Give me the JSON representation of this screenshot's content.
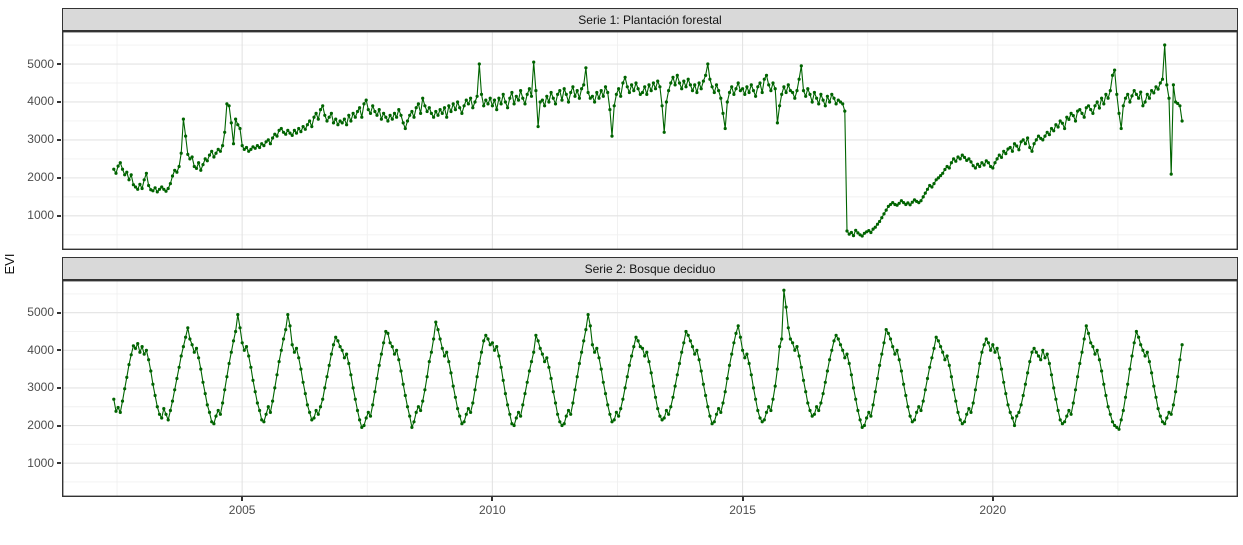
{
  "chart_data": {
    "type": "line",
    "title": "",
    "xlabel": "",
    "ylabel": "EVI",
    "legend": "none",
    "grid": true,
    "point_color": "#006400",
    "x_axis": {
      "ticks": [
        2005,
        2010,
        2015,
        2020
      ],
      "minor_ticks": [
        2002.5,
        2007.5,
        2012.5,
        2017.5,
        2022.5
      ],
      "domain": [
        2001.4,
        2024.9
      ]
    },
    "y_axis": {
      "ticks": [
        1000,
        2000,
        3000,
        4000,
        5000
      ],
      "minor_ticks": [
        500,
        1500,
        2500,
        3500,
        4500,
        5500
      ],
      "domain": [
        100,
        5870
      ]
    },
    "x_start": 2002.4348,
    "x_step": 0.043478,
    "facets": [
      {
        "title": "Serie 1: Plantación forestal",
        "values": [
          2230,
          2120,
          2310,
          2400,
          2230,
          2080,
          2150,
          1950,
          2080,
          1820,
          1760,
          1700,
          1830,
          1720,
          1950,
          2120,
          1800,
          1690,
          1660,
          1740,
          1630,
          1700,
          1760,
          1700,
          1650,
          1720,
          1850,
          2050,
          2200,
          2150,
          2300,
          2650,
          3550,
          3100,
          2620,
          2500,
          2550,
          2300,
          2250,
          2400,
          2200,
          2350,
          2500,
          2450,
          2600,
          2700,
          2550,
          2650,
          2750,
          2700,
          2850,
          3200,
          3950,
          3900,
          3450,
          2900,
          3550,
          3400,
          3300,
          2850,
          2750,
          2800,
          2700,
          2750,
          2820,
          2780,
          2850,
          2800,
          2900,
          2850,
          2950,
          3000,
          2900,
          3050,
          3150,
          3100,
          3250,
          3300,
          3200,
          3150,
          3250,
          3180,
          3120,
          3250,
          3180,
          3300,
          3220,
          3350,
          3280,
          3400,
          3500,
          3350,
          3600,
          3700,
          3550,
          3800,
          3900,
          3650,
          3500,
          3600,
          3700,
          3450,
          3550,
          3400,
          3500,
          3450,
          3550,
          3400,
          3650,
          3500,
          3700,
          3600,
          3750,
          3850,
          3600,
          3950,
          4050,
          3800,
          3700,
          3900,
          3750,
          3650,
          3800,
          3550,
          3700,
          3600,
          3500,
          3650,
          3550,
          3700,
          3600,
          3800,
          3650,
          3450,
          3300,
          3500,
          3650,
          3750,
          3600,
          3850,
          3950,
          3700,
          4100,
          3900,
          3750,
          3850,
          3700,
          3600,
          3750,
          3650,
          3800,
          3700,
          3850,
          3600,
          3900,
          3750,
          3950,
          3800,
          4000,
          3850,
          3700,
          3900,
          4050,
          3950,
          4100,
          3850,
          4000,
          4150,
          5000,
          4200,
          3900,
          4050,
          3950,
          4100,
          3900,
          4050,
          3800,
          4100,
          3950,
          4200,
          4000,
          3850,
          4100,
          4250,
          3950,
          4150,
          4050,
          4300,
          4100,
          3950,
          4200,
          4350,
          4150,
          5050,
          4300,
          3350,
          4000,
          4050,
          3900,
          4150,
          4000,
          4250,
          4100,
          3950,
          4200,
          4300,
          4050,
          4350,
          4200,
          4000,
          4250,
          4400,
          4150,
          4300,
          4100,
          4350,
          4450,
          4900,
          4250,
          4100,
          4150,
          4000,
          4250,
          4100,
          4300,
          4150,
          4400,
          4250,
          3800,
          3100,
          3900,
          4200,
          4350,
          4150,
          4500,
          4650,
          4400,
          4250,
          4450,
          4300,
          4500,
          4350,
          4200,
          4250,
          4400,
          4200,
          4450,
          4300,
          4500,
          4350,
          4550,
          4400,
          3900,
          3200,
          4000,
          4300,
          4500,
          4650,
          4450,
          4700,
          4500,
          4350,
          4550,
          4400,
          4600,
          4450,
          4300,
          4450,
          4250,
          4500,
          4350,
          4550,
          4700,
          5000,
          4600,
          4400,
          4250,
          4450,
          4300,
          4100,
          3700,
          3300,
          4000,
          4250,
          4400,
          4200,
          4350,
          4500,
          4300,
          4350,
          4200,
          4400,
          4250,
          4450,
          4300,
          4150,
          4400,
          4500,
          4250,
          4600,
          4700,
          4450,
          4300,
          4500,
          4350,
          3450,
          3900,
          4200,
          4400,
          4250,
          4450,
          4300,
          4250,
          4100,
          4300,
          4600,
          4950,
          4300,
          4150,
          4350,
          4200,
          4000,
          4250,
          4100,
          3950,
          4200,
          4050,
          3900,
          4150,
          4000,
          4200,
          4100,
          3950,
          4050,
          4000,
          3950,
          3760,
          600,
          520,
          560,
          480,
          620,
          550,
          500,
          470,
          540,
          580,
          610,
          560,
          650,
          700,
          780,
          850,
          950,
          1050,
          1150,
          1250,
          1300,
          1350,
          1300,
          1280,
          1330,
          1400,
          1350,
          1300,
          1340,
          1290,
          1360,
          1420,
          1380,
          1350,
          1400,
          1500,
          1600,
          1700,
          1800,
          1760,
          1850,
          1950,
          2000,
          2060,
          2120,
          2220,
          2300,
          2260,
          2400,
          2500,
          2440,
          2550,
          2500,
          2600,
          2540,
          2460,
          2500,
          2420,
          2320,
          2260,
          2360,
          2300,
          2400,
          2340,
          2450,
          2400,
          2300,
          2260,
          2400,
          2500,
          2600,
          2540,
          2700,
          2640,
          2760,
          2800,
          2700,
          2900,
          2840,
          2740,
          2950,
          3000,
          2900,
          3050,
          2800,
          2700,
          2900,
          3000,
          3100,
          3040,
          3000,
          3100,
          3200,
          3140,
          3300,
          3240,
          3400,
          3340,
          3500,
          3440,
          3300,
          3600,
          3540,
          3700,
          3640,
          3500,
          3760,
          3800,
          3700,
          3600,
          3850,
          3900,
          3800,
          3700,
          3900,
          4000,
          3840,
          4100,
          3950,
          4200,
          4100,
          4300,
          4700,
          4840,
          4200,
          3700,
          3300,
          3900,
          4100,
          4200,
          4000,
          4160,
          4300,
          4200,
          4100,
          4260,
          3900,
          4000,
          4200,
          4100,
          4300,
          4240,
          4400,
          4340,
          4500,
          4600,
          5500,
          4450,
          4100,
          2100,
          4450,
          4000,
          3960,
          3900,
          3500
        ]
      },
      {
        "title": "Serie 2: Bosque deciduo",
        "values": [
          2700,
          2380,
          2480,
          2350,
          2650,
          2980,
          3280,
          3620,
          3880,
          4120,
          4050,
          4180,
          3950,
          4100,
          3900,
          4000,
          3750,
          3450,
          3100,
          2800,
          2500,
          2300,
          2200,
          2450,
          2300,
          2150,
          2400,
          2650,
          2950,
          3250,
          3550,
          3850,
          4100,
          4350,
          4600,
          4300,
          4150,
          3950,
          4050,
          3800,
          3500,
          3150,
          2850,
          2550,
          2350,
          2100,
          2050,
          2250,
          2400,
          2300,
          2600,
          2950,
          3300,
          3650,
          3950,
          4250,
          4500,
          4950,
          4600,
          4200,
          4000,
          4100,
          3850,
          3550,
          3200,
          2900,
          2600,
          2400,
          2150,
          2100,
          2300,
          2500,
          2350,
          2650,
          3000,
          3350,
          3700,
          4000,
          4300,
          4550,
          4950,
          4650,
          4150,
          3950,
          4050,
          3800,
          3500,
          3150,
          2850,
          2550,
          2350,
          2150,
          2200,
          2400,
          2300,
          2500,
          2700,
          3000,
          3300,
          3600,
          3900,
          4150,
          4350,
          4250,
          4100,
          4000,
          3800,
          3900,
          3650,
          3350,
          3000,
          2700,
          2400,
          2150,
          1950,
          2000,
          2200,
          2350,
          2250,
          2550,
          2900,
          3250,
          3600,
          3900,
          4200,
          4500,
          4450,
          4200,
          4100,
          3900,
          4000,
          3750,
          3450,
          3100,
          2800,
          2500,
          2250,
          1950,
          2100,
          2350,
          2500,
          2400,
          2650,
          2950,
          3300,
          3700,
          3950,
          4300,
          4750,
          4550,
          4300,
          4050,
          3850,
          3950,
          3700,
          3400,
          3050,
          2750,
          2450,
          2250,
          2050,
          2100,
          2300,
          2450,
          2350,
          2600,
          2950,
          3300,
          3650,
          3950,
          4250,
          4400,
          4300,
          4150,
          4200,
          4000,
          4100,
          3850,
          3550,
          3200,
          2850,
          2550,
          2300,
          2050,
          2000,
          2200,
          2350,
          2250,
          2550,
          2850,
          3150,
          3450,
          3700,
          3950,
          4400,
          4250,
          4050,
          3900,
          3700,
          3800,
          3550,
          3250,
          2900,
          2600,
          2300,
          2100,
          2000,
          2050,
          2250,
          2400,
          2300,
          2600,
          2950,
          3300,
          3650,
          3950,
          4250,
          4550,
          4950,
          4650,
          4150,
          3950,
          4050,
          3800,
          3500,
          3150,
          2850,
          2550,
          2300,
          2100,
          2150,
          2350,
          2250,
          2450,
          2700,
          3000,
          3300,
          3600,
          3850,
          4100,
          4350,
          4250,
          4100,
          4050,
          3850,
          3950,
          3700,
          3400,
          3050,
          2750,
          2450,
          2250,
          2150,
          2200,
          2400,
          2300,
          2500,
          2750,
          3050,
          3350,
          3650,
          3950,
          4200,
          4500,
          4400,
          4250,
          4100,
          3900,
          4000,
          3750,
          3450,
          3100,
          2800,
          2500,
          2250,
          2050,
          2100,
          2300,
          2450,
          2350,
          2600,
          2900,
          3250,
          3600,
          3900,
          4200,
          4450,
          4650,
          4350,
          4000,
          3800,
          3900,
          3650,
          3350,
          3000,
          2700,
          2400,
          2200,
          2100,
          2150,
          2350,
          2500,
          2400,
          2700,
          3050,
          3500,
          4100,
          4300,
          5600,
          5150,
          4600,
          4300,
          4200,
          4000,
          4100,
          3850,
          3550,
          3200,
          2900,
          2600,
          2400,
          2250,
          2300,
          2500,
          2400,
          2600,
          2850,
          3150,
          3450,
          3750,
          4000,
          4250,
          4400,
          4300,
          4150,
          4000,
          3800,
          3900,
          3650,
          3350,
          3000,
          2700,
          2400,
          2150,
          1950,
          2000,
          2200,
          2350,
          2250,
          2550,
          2900,
          3250,
          3600,
          3900,
          4200,
          4550,
          4450,
          4300,
          4100,
          3900,
          4000,
          3750,
          3450,
          3100,
          2800,
          2500,
          2250,
          2100,
          2150,
          2350,
          2500,
          2400,
          2650,
          2950,
          3250,
          3550,
          3800,
          4050,
          4350,
          4250,
          4100,
          3950,
          3750,
          3850,
          3600,
          3300,
          2950,
          2650,
          2350,
          2150,
          2050,
          2100,
          2300,
          2450,
          2350,
          2600,
          2950,
          3300,
          3650,
          3950,
          4150,
          4300,
          4200,
          4000,
          4150,
          3950,
          4050,
          3800,
          3500,
          3150,
          2850,
          2550,
          2350,
          2200,
          2000,
          2250,
          2350,
          2550,
          2800,
          3100,
          3400,
          3700,
          3950,
          4050,
          3950,
          3850,
          3750,
          4000,
          3800,
          3900,
          3650,
          3350,
          3000,
          2700,
          2400,
          2150,
          2050,
          2100,
          2250,
          2400,
          2300,
          2600,
          2950,
          3300,
          3650,
          3950,
          4300,
          4650,
          4450,
          4200,
          4100,
          3900,
          4000,
          3750,
          3450,
          3100,
          2800,
          2500,
          2300,
          2100,
          2000,
          1950,
          1900,
          2150,
          2400,
          2750,
          3100,
          3500,
          3850,
          4200,
          4500,
          4350,
          4150,
          4000,
          3850,
          3950,
          3700,
          3400,
          3050,
          2750,
          2450,
          2250,
          2100,
          2050,
          2200,
          2350,
          2300,
          2550,
          2900,
          3300,
          3750,
          4150
        ]
      }
    ]
  },
  "styles": {
    "strip_background": "#d9d9d9",
    "panel_border": "#333333",
    "grid_major": "#e3e3e3",
    "grid_minor": "#f0f0f0",
    "tick_text": "#4d4d4d",
    "series_color": "#006400"
  }
}
